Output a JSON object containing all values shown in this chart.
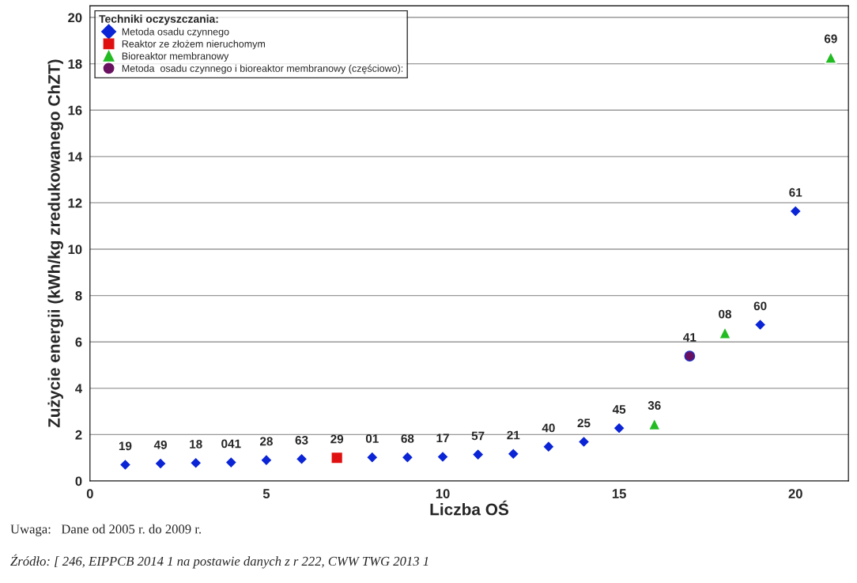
{
  "chart_data": {
    "type": "scatter",
    "xlabel": "Liczba OŚ",
    "ylabel": "Zużycie energii (kWh/kg zredukowanego ChZT)",
    "legend_title": "Techniki oczyszczania:",
    "legend": "top left",
    "grid": "y",
    "xlim": [
      0,
      21.5
    ],
    "ylim": [
      0,
      20.5
    ],
    "xticks": [
      0,
      5,
      10,
      15,
      20
    ],
    "yticks": [
      0,
      2,
      4,
      6,
      8,
      10,
      12,
      14,
      16,
      18,
      20
    ],
    "series": [
      {
        "name": "Metoda osadu czynnego",
        "color": "#0a24d6",
        "marker": "diamond",
        "x": [
          1,
          2,
          3,
          4,
          5,
          6,
          8,
          9,
          10,
          11,
          12,
          13,
          14,
          15,
          19,
          20
        ],
        "values": [
          0.7,
          0.75,
          0.78,
          0.8,
          0.9,
          0.95,
          1.02,
          1.02,
          1.04,
          1.14,
          1.17,
          1.48,
          1.69,
          2.28,
          6.74,
          11.64
        ]
      },
      {
        "name": "Reaktor ze złożem nieruchomym",
        "color": "#e01010",
        "marker": "square",
        "x": [
          7
        ],
        "values": [
          1.0
        ]
      },
      {
        "name": "Bioreaktor membranowy",
        "color": "#22bb22",
        "marker": "triangle",
        "x": [
          16,
          18,
          21
        ],
        "values": [
          2.45,
          6.39,
          18.27
        ]
      },
      {
        "name": "Metoda  osadu czynnego i bioreaktor membranowy (częściowo):",
        "color": "#6a1060",
        "marker": "circle",
        "x": [
          17
        ],
        "values": [
          5.39
        ]
      }
    ],
    "annotations": [
      {
        "text": "19",
        "x": 1,
        "y": 0.7
      },
      {
        "text": "49",
        "x": 2,
        "y": 0.75
      },
      {
        "text": "18",
        "x": 3,
        "y": 0.78
      },
      {
        "text": "041",
        "x": 4,
        "y": 0.8
      },
      {
        "text": "28",
        "x": 5,
        "y": 0.9
      },
      {
        "text": "63",
        "x": 6,
        "y": 0.95
      },
      {
        "text": "29",
        "x": 7,
        "y": 1.0
      },
      {
        "text": "01",
        "x": 8,
        "y": 1.02
      },
      {
        "text": "68",
        "x": 9,
        "y": 1.02
      },
      {
        "text": "17",
        "x": 10,
        "y": 1.04
      },
      {
        "text": "57",
        "x": 11,
        "y": 1.14
      },
      {
        "text": "21",
        "x": 12,
        "y": 1.17
      },
      {
        "text": "40",
        "x": 13,
        "y": 1.48
      },
      {
        "text": "25",
        "x": 14,
        "y": 1.69
      },
      {
        "text": "45",
        "x": 15,
        "y": 2.28
      },
      {
        "text": "36",
        "x": 16,
        "y": 2.45
      },
      {
        "text": "41",
        "x": 17,
        "y": 5.39
      },
      {
        "text": "08",
        "x": 18,
        "y": 6.39
      },
      {
        "text": "60",
        "x": 19,
        "y": 6.74
      },
      {
        "text": "61",
        "x": 20,
        "y": 11.64
      },
      {
        "text": "69",
        "x": 21,
        "y": 18.27
      },
      "Uwaga:   Dane od 2005 r. do 2009 r.",
      "Źródło: [ 246, EIPPCB 2014 1 na postawie danych z r 222, CWW TWG 2013 1"
    ]
  }
}
